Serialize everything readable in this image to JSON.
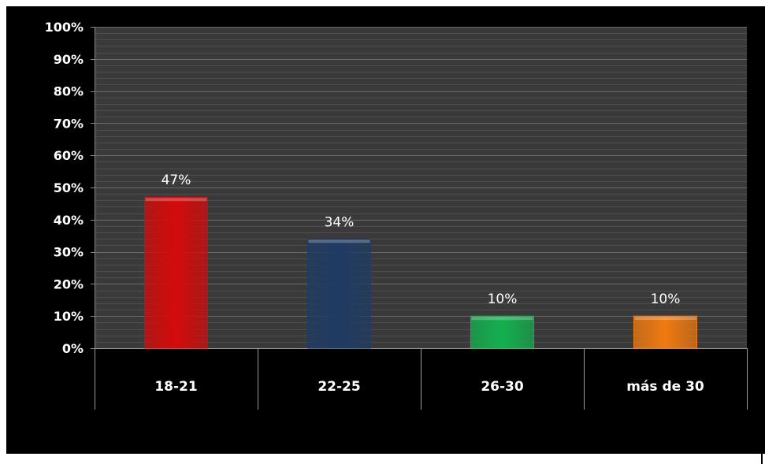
{
  "chart_data": {
    "type": "bar",
    "categories": [
      "18-21",
      "22-25",
      "26-30",
      "más de 30"
    ],
    "values": [
      47,
      34,
      10,
      10
    ],
    "data_labels": [
      "47%",
      "34%",
      "10%",
      "10%"
    ],
    "colors": [
      "#d40b0b",
      "#1f3b63",
      "#14b04f",
      "#f07a10"
    ],
    "ylim": [
      0,
      100
    ],
    "yticks": [
      "0%",
      "10%",
      "20%",
      "30%",
      "40%",
      "50%",
      "60%",
      "70%",
      "80%",
      "90%",
      "100%"
    ],
    "title": "",
    "xlabel": "",
    "ylabel": "",
    "legend": false,
    "grid": true,
    "background": "#000000",
    "plot_background": "#3a3a3a"
  }
}
